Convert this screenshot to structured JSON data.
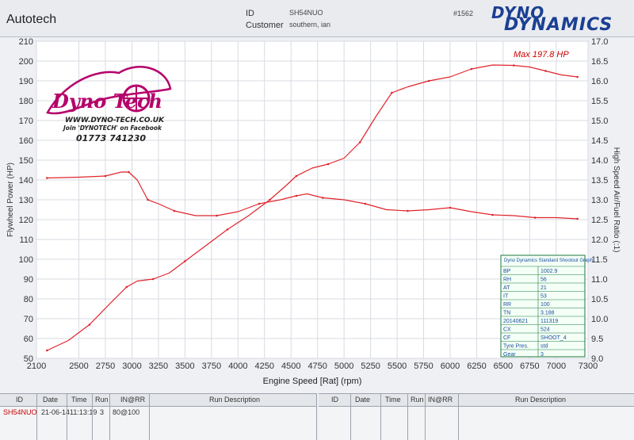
{
  "header": {
    "app_name": "Autotech",
    "id_label": "ID",
    "id_value": "SH54NUO",
    "customer_label": "Customer",
    "customer_value": "southern, ian",
    "record_number": "#1562",
    "logo_line1": "DYNO",
    "logo_line2": "DYNAMICS"
  },
  "watermark": {
    "url": "WWW.DYNO-TECH.CO.UK",
    "facebook": "Join 'DYNOTECH' on Facebook",
    "phone": "01773 741230",
    "logo_text": "Dyno Tech"
  },
  "chart_data": {
    "type": "line",
    "title": "",
    "annotation": "Max 197.8 HP",
    "xlabel": "Engine Speed [Rat] (rpm)",
    "ylabel": "Flywheel Power (HP)",
    "ylabel_right": "High Speed Air/Fuel Ratio (:1)",
    "xlim": [
      2100,
      7300
    ],
    "ylim": [
      50,
      210
    ],
    "ylim_right": [
      9.0,
      17.0
    ],
    "x_ticks": [
      2100,
      2500,
      2750,
      3000,
      3250,
      3500,
      3750,
      4000,
      4250,
      4500,
      4750,
      5000,
      5250,
      5500,
      5750,
      6000,
      6250,
      6500,
      6750,
      7000,
      7300
    ],
    "y_ticks": [
      50,
      60,
      70,
      80,
      90,
      100,
      110,
      120,
      130,
      140,
      150,
      160,
      170,
      180,
      190,
      200,
      210
    ],
    "y_ticks_right": [
      "9.0",
      "9.5",
      "10.0",
      "10.5",
      "11.0",
      "11.5",
      "12.0",
      "12.5",
      "13.0",
      "13.5",
      "14.0",
      "14.5",
      "15.0",
      "15.5",
      "16.0",
      "16.5",
      "17.0"
    ],
    "grid": true,
    "series": [
      {
        "axis": "left",
        "color": "#e0242c",
        "x": [
          2200,
          2400,
          2600,
          2800,
          2950,
          3050,
          3200,
          3350,
          3500,
          3700,
          3900,
          4100,
          4300,
          4450,
          4550,
          4700,
          4850,
          5000,
          5150,
          5300,
          5450,
          5600,
          5800,
          6000,
          6200,
          6400,
          6600,
          6750,
          6900,
          7050,
          7200
        ],
        "values": [
          54,
          59,
          67,
          78,
          86,
          89,
          90,
          93,
          99,
          107,
          115,
          122,
          130,
          137,
          142,
          146,
          148,
          151,
          159,
          172,
          184,
          187,
          190,
          192,
          196,
          198,
          197.8,
          197,
          195,
          193,
          192
        ]
      },
      {
        "axis": "right",
        "color": "#e0242c",
        "x": [
          2200,
          2500,
          2750,
          2900,
          2970,
          3050,
          3150,
          3250,
          3400,
          3600,
          3800,
          4000,
          4200,
          4400,
          4550,
          4650,
          4800,
          5000,
          5200,
          5400,
          5600,
          5800,
          6000,
          6200,
          6400,
          6600,
          6800,
          7000,
          7200
        ],
        "values": [
          13.55,
          13.57,
          13.6,
          13.7,
          13.7,
          13.5,
          13.0,
          12.9,
          12.72,
          12.6,
          12.6,
          12.7,
          12.9,
          13.0,
          13.1,
          13.15,
          13.05,
          13.0,
          12.9,
          12.75,
          12.72,
          12.75,
          12.8,
          12.7,
          12.62,
          12.6,
          12.55,
          12.55,
          12.52
        ]
      }
    ]
  },
  "shootout_box": {
    "title": "Dyno Dynamics Standard Shootout Graph",
    "rows": [
      [
        "BP",
        "1002.9"
      ],
      [
        "RH",
        "56"
      ],
      [
        "AT",
        "21"
      ],
      [
        "IT",
        "53"
      ],
      [
        "RR",
        "100"
      ],
      [
        "TN",
        "3.188"
      ],
      [
        "20140621",
        "111319"
      ],
      [
        "CX",
        "524"
      ],
      [
        "CF",
        "SHOOT_4"
      ],
      [
        "Tyre Pres.",
        "std"
      ],
      [
        "Gear",
        "3"
      ]
    ]
  },
  "run_table_left": {
    "headers": [
      "ID",
      "Date",
      "Time",
      "Run",
      "IN@RR",
      "Run Description"
    ],
    "rows": [
      [
        "SH54NUO",
        "21-06-14",
        "11:13:19",
        "3",
        "80@100",
        ""
      ]
    ]
  },
  "run_table_right": {
    "headers": [
      "ID",
      "Date",
      "Time",
      "Run",
      "IN@RR",
      "Run Description"
    ]
  }
}
